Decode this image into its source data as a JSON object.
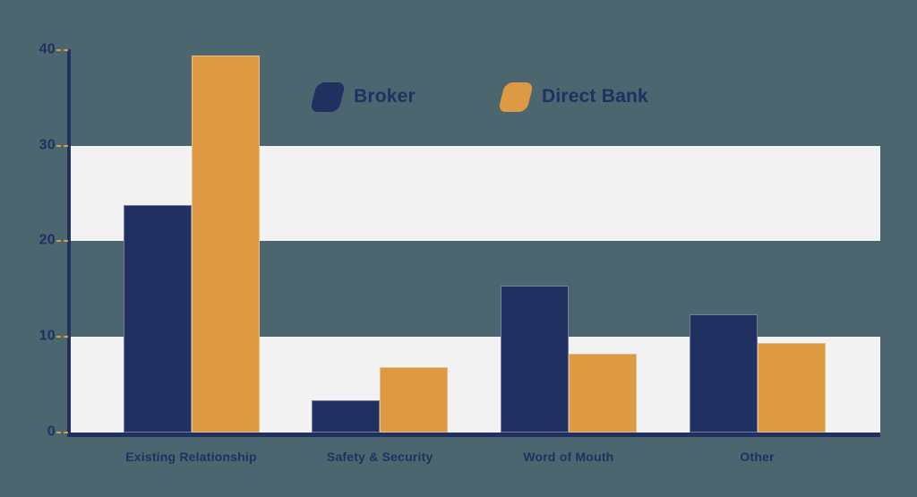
{
  "page": {
    "background": "#4c6670"
  },
  "colors": {
    "background": "#4c6670",
    "band": "#f2f2f2",
    "navy": "#203060",
    "orange": "#dd9a43",
    "text": "#203060",
    "tick_dash": "#dd9a43"
  },
  "legend": {
    "position": "top-center",
    "items": [
      {
        "label": "Broker",
        "color": "#203060"
      },
      {
        "label": "Direct Bank",
        "color": "#dd9a43"
      }
    ]
  },
  "chart_data": {
    "type": "bar",
    "title": "",
    "xlabel": "",
    "ylabel": "",
    "categories": [
      "Existing Relationship",
      "Safety & Security",
      "Word of Mouth",
      "Other"
    ],
    "series": [
      {
        "name": "Broker",
        "color": "#203060",
        "values": [
          23.8,
          3.4,
          15.4,
          12.4
        ]
      },
      {
        "name": "Direct Bank",
        "color": "#dd9a43",
        "values": [
          39.4,
          6.8,
          8.2,
          9.4
        ]
      }
    ],
    "ylim": [
      0,
      40
    ],
    "yticks": [
      0,
      10,
      20,
      30,
      40
    ],
    "grid": "alternating-horizontal-bands",
    "bands": [
      [
        0,
        10
      ],
      [
        20,
        30
      ]
    ],
    "legend_position": "top-center"
  }
}
